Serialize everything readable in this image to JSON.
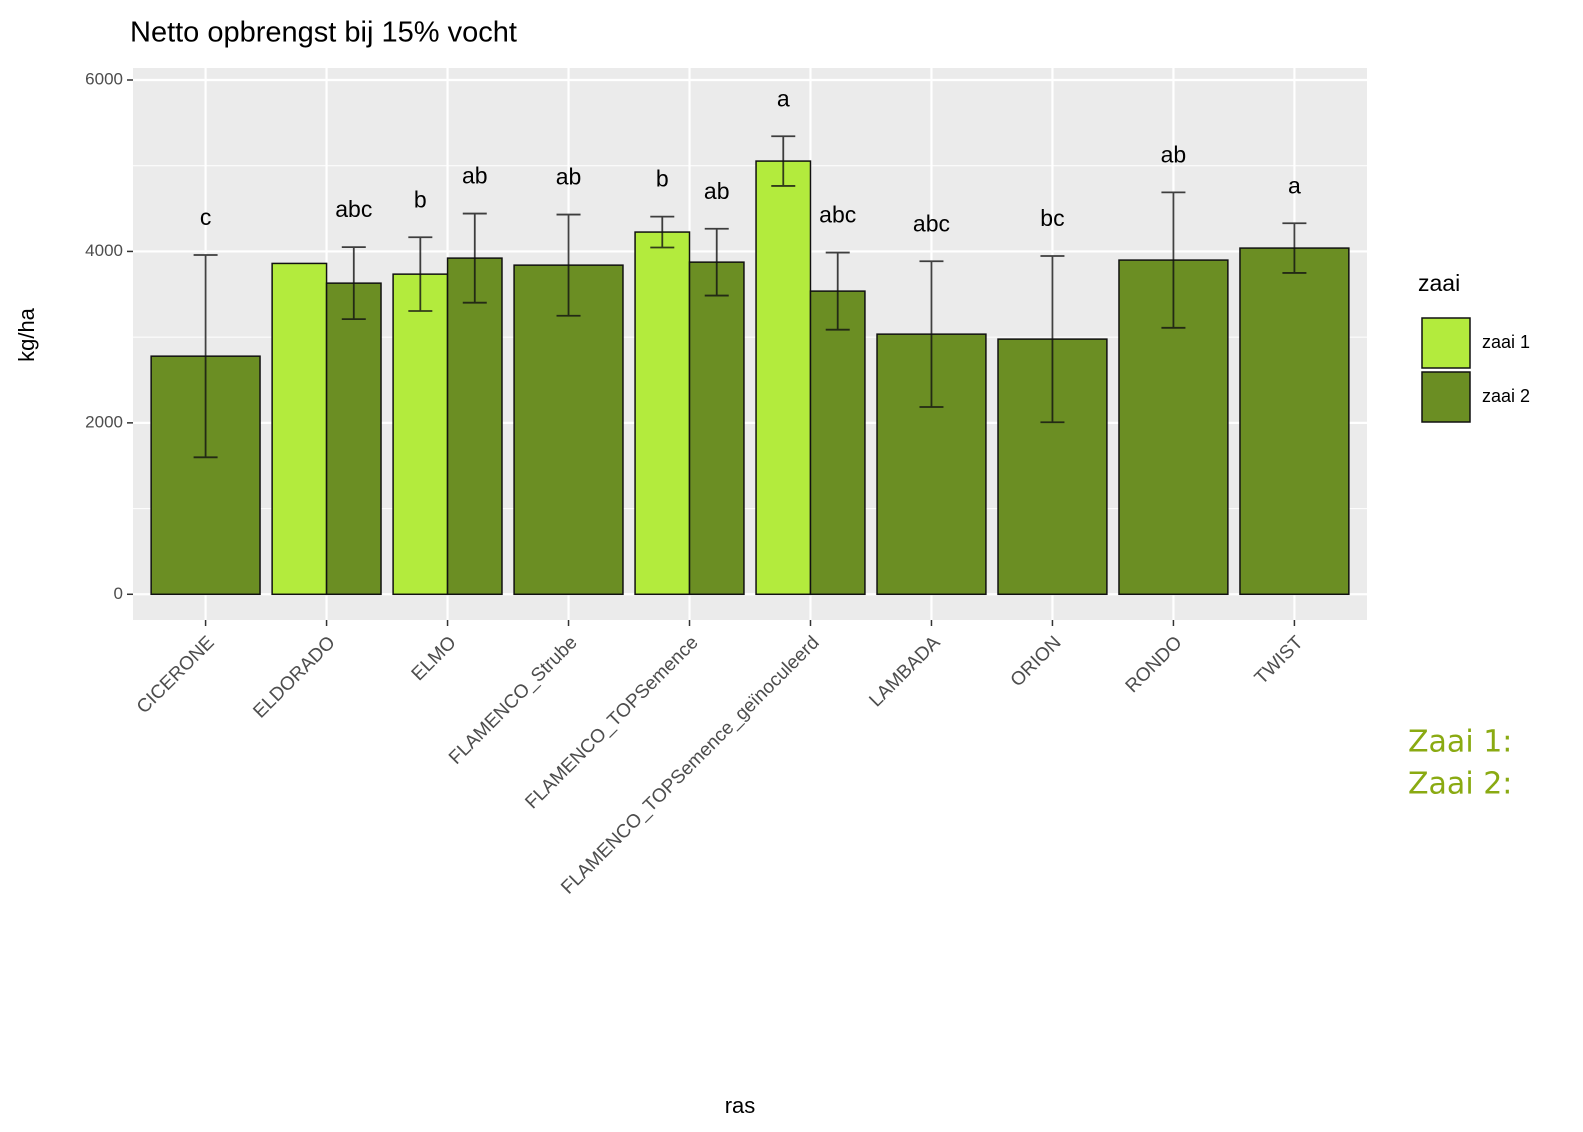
{
  "chart_data": {
    "type": "bar",
    "title": "Netto opbrengst bij 15% vocht",
    "x_label": "ras",
    "y_label": "kg/ha",
    "legend_title": "zaai",
    "categories": [
      "CICERONE",
      "ELDORADO",
      "ELMO",
      "FLAMENCO_Strube",
      "FLAMENCO_TOPSemence",
      "FLAMENCO_TOPSemence_geïnoculeerd",
      "LAMBADA",
      "ORION",
      "RONDO",
      "TWIST"
    ],
    "series": [
      {
        "name": "zaai 1",
        "color": "#b3eb3d",
        "values": [
          null,
          3860,
          3735,
          null,
          4226,
          5054,
          null,
          null,
          null,
          null
        ],
        "errors": [
          null,
          null,
          430,
          null,
          180,
          290,
          null,
          null,
          null,
          null
        ],
        "letters": [
          null,
          null,
          "b",
          null,
          "b",
          "a",
          null,
          null,
          null,
          null
        ]
      },
      {
        "name": "zaai 2",
        "color": "#6b8e23",
        "values": [
          2778,
          3630,
          3922,
          3840,
          3875,
          3537,
          3035,
          2977,
          3899,
          4039
        ],
        "errors": [
          1180,
          420,
          520,
          590,
          390,
          450,
          850,
          970,
          790,
          290
        ],
        "letters": [
          "c",
          "abc",
          "ab",
          "ab",
          "ab",
          "abc",
          "abc",
          "bc",
          "ab",
          "a"
        ]
      }
    ],
    "ylim": [
      -300,
      6140
    ],
    "yticks": [
      0,
      2000,
      4000,
      6000
    ],
    "yticks_minor": [
      1000,
      3000,
      5000
    ],
    "grid": true
  },
  "notes": [
    "Zaai 1:",
    "Zaai 2:"
  ]
}
